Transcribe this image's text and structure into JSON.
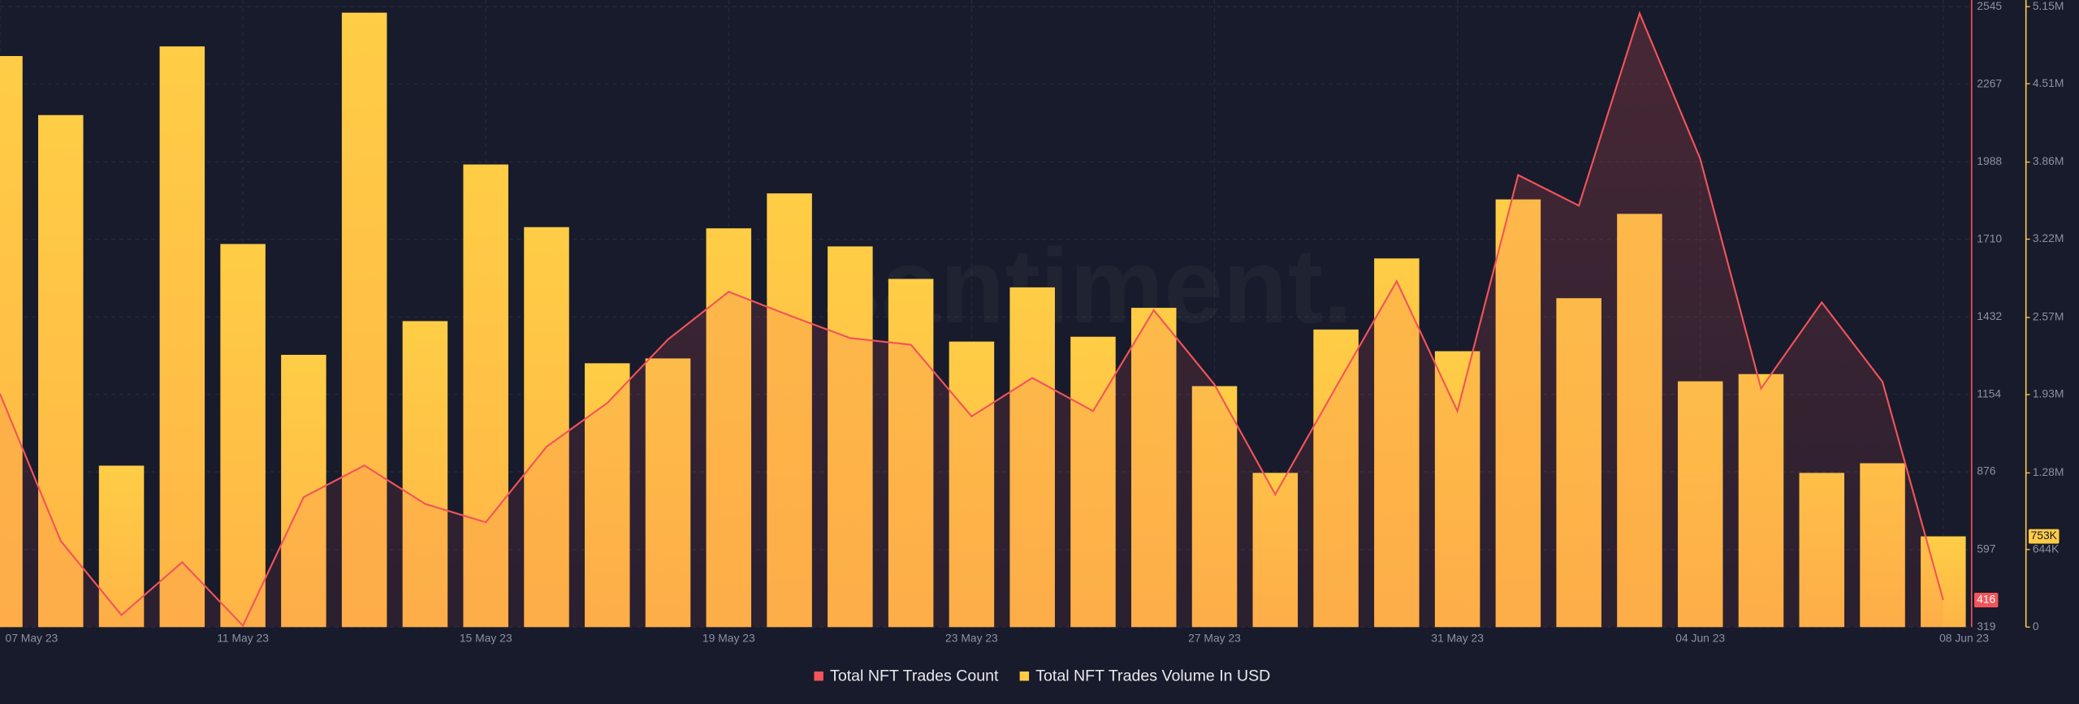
{
  "chart_data": {
    "type": "bar-line",
    "watermark": "santiment.",
    "categories": [
      "07 May 23",
      null,
      null,
      null,
      "11 May 23",
      null,
      null,
      null,
      "15 May 23",
      null,
      null,
      null,
      "19 May 23",
      null,
      null,
      null,
      "23 May 23",
      null,
      null,
      null,
      "27 May 23",
      null,
      null,
      null,
      "31 May 23",
      null,
      null,
      null,
      "04 Jun 23",
      null,
      null,
      null,
      "08 Jun 23"
    ],
    "series": [
      {
        "name": "Total NFT Trades Count",
        "color": "#f2545b",
        "kind": "line",
        "axis": "y",
        "values": [
          1156,
          628,
          362,
          552,
          324,
          785,
          899,
          761,
          695,
          966,
          1123,
          1351,
          1522,
          1437,
          1356,
          1332,
          1075,
          1213,
          1094,
          1456,
          1189,
          795,
          1180,
          1560,
          1094,
          1941,
          1831,
          2521,
          1998,
          1175,
          1484,
          1199,
          416
        ]
      },
      {
        "name": "Total NFT Trades Volume In USD",
        "color": "#ffcb47",
        "kind": "bar",
        "axis": "y2",
        "values": [
          4740000,
          4250000,
          1340000,
          4820000,
          3180000,
          2260000,
          5100000,
          2540000,
          3840000,
          3320000,
          2190000,
          2230000,
          3310000,
          3600000,
          3160000,
          2890000,
          2370000,
          2820000,
          2410000,
          2650000,
          2000000,
          1280000,
          2470000,
          3060000,
          2290000,
          3550000,
          2730000,
          3430000,
          2040000,
          2100000,
          1280000,
          1360000,
          753000
        ],
        "value_labels": [
          null,
          null,
          null,
          null,
          null,
          null,
          null,
          null,
          null,
          null,
          null,
          null,
          null,
          null,
          null,
          null,
          null,
          null,
          null,
          null,
          null,
          null,
          null,
          null,
          null,
          null,
          null,
          null,
          null,
          null,
          null,
          null,
          "753K"
        ]
      }
    ],
    "ylim": [
      319,
      2545
    ],
    "yticks": [
      319,
      597,
      876,
      1154,
      1432,
      1710,
      1988,
      2267,
      2545
    ],
    "y2lim": [
      0,
      5150000
    ],
    "y2ticks": [
      0,
      {
        "value": 644000,
        "label": "644K"
      },
      {
        "value": 1280000,
        "label": "1.28M"
      },
      {
        "value": 1930000,
        "label": "1.93M"
      },
      {
        "value": 2570000,
        "label": "2.57M"
      },
      {
        "value": 3220000,
        "label": "3.22M"
      },
      {
        "value": 3860000,
        "label": "3.86M"
      },
      {
        "value": 4510000,
        "label": "4.51M"
      },
      {
        "value": 5150000,
        "label": "5.15M"
      }
    ],
    "grid": true,
    "legend": "bottom"
  }
}
